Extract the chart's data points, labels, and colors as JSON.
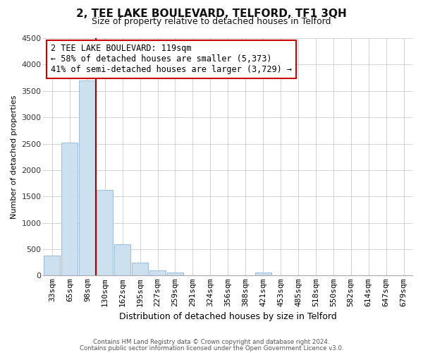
{
  "title": "2, TEE LAKE BOULEVARD, TELFORD, TF1 3QH",
  "subtitle": "Size of property relative to detached houses in Telford",
  "xlabel": "Distribution of detached houses by size in Telford",
  "ylabel": "Number of detached properties",
  "categories": [
    "33sqm",
    "65sqm",
    "98sqm",
    "130sqm",
    "162sqm",
    "195sqm",
    "227sqm",
    "259sqm",
    "291sqm",
    "324sqm",
    "356sqm",
    "388sqm",
    "421sqm",
    "453sqm",
    "485sqm",
    "518sqm",
    "550sqm",
    "582sqm",
    "614sqm",
    "647sqm",
    "679sqm"
  ],
  "values": [
    380,
    2520,
    3700,
    1630,
    600,
    240,
    100,
    55,
    0,
    0,
    0,
    0,
    55,
    0,
    0,
    0,
    0,
    0,
    0,
    0,
    0
  ],
  "bar_color": "#cce0f0",
  "bar_edge_color": "#a0c0e0",
  "vline_color": "#aa0000",
  "annotation_text_line1": "2 TEE LAKE BOULEVARD: 119sqm",
  "annotation_text_line2": "← 58% of detached houses are smaller (5,373)",
  "annotation_text_line3": "41% of semi-detached houses are larger (3,729) →",
  "annotation_box_color": "#ffffff",
  "annotation_box_edge": "#cc0000",
  "ylim": [
    0,
    4500
  ],
  "yticks": [
    0,
    500,
    1000,
    1500,
    2000,
    2500,
    3000,
    3500,
    4000,
    4500
  ],
  "footer1": "Contains HM Land Registry data © Crown copyright and database right 2024.",
  "footer2": "Contains public sector information licensed under the Open Government Licence v3.0.",
  "background_color": "#ffffff",
  "grid_color": "#cccccc",
  "title_fontsize": 11,
  "subtitle_fontsize": 9,
  "ylabel_fontsize": 8,
  "xlabel_fontsize": 9,
  "tick_fontsize": 8,
  "annot_fontsize": 8.5
}
